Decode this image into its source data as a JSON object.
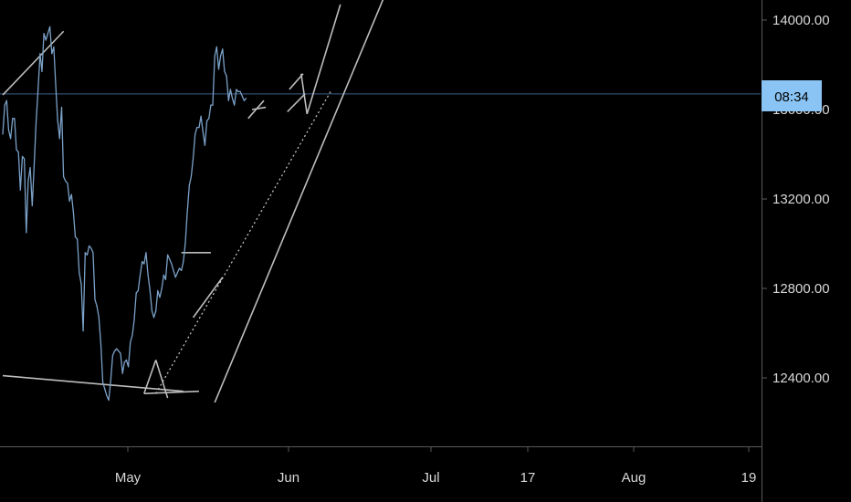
{
  "chart_data": {
    "type": "line",
    "title": "",
    "xlabel": "",
    "ylabel": "",
    "x_ticks": [
      "May",
      "Jun",
      "Jul",
      "17",
      "Aug",
      "19"
    ],
    "y_ticks": [
      "14000.00",
      "13600.00",
      "13200.00",
      "12800.00",
      "12400.00"
    ],
    "ylim": [
      12100,
      14080
    ],
    "current_price_label": "08:34",
    "current_price_level": 13670,
    "grid": false,
    "series": [
      {
        "values": [
          13490,
          13620,
          13640,
          13510,
          13470,
          13560,
          13560,
          13420,
          13410,
          13240,
          13390,
          13380,
          13050,
          13280,
          13340,
          13170,
          13350,
          13540,
          13690,
          13850,
          13770,
          13940,
          13910,
          13940,
          13970,
          13850,
          13880,
          13710,
          13550,
          13470,
          13610,
          13300,
          13280,
          13270,
          13190,
          13220,
          13140,
          13030,
          13020,
          12870,
          12820,
          12610,
          12960,
          12950,
          12990,
          12980,
          12960,
          12750,
          12720,
          12670,
          12550,
          12380,
          12350,
          12320,
          12300,
          12390,
          12500,
          12520,
          12530,
          12520,
          12510,
          12420,
          12470,
          12480,
          12450,
          12560,
          12590,
          12660,
          12780,
          12790,
          12860,
          12920,
          12910,
          12960,
          12860,
          12790,
          12700,
          12670,
          12700,
          12790,
          12760,
          12800,
          12860,
          12840,
          12950,
          12930,
          12910,
          12880,
          12850,
          12870,
          12890,
          12880,
          12920,
          13000,
          13140,
          13260,
          13300,
          13380,
          13490,
          13520,
          13520,
          13570,
          13500,
          13440,
          13550,
          13560,
          13620,
          13620,
          13840,
          13880,
          13780,
          13840,
          13870,
          13770,
          13750,
          13640,
          13690,
          13650,
          13620,
          13690,
          13680,
          13680,
          13660,
          13640,
          13650
        ]
      }
    ],
    "annotations": [
      {
        "kind": "trendline",
        "points": [
          [
            0,
            13665
          ],
          [
            31,
            13950
          ]
        ]
      },
      {
        "kind": "trendline",
        "points": [
          [
            0,
            12410
          ],
          [
            92,
            12340
          ]
        ]
      },
      {
        "kind": "trendline",
        "points": [
          [
            72,
            12330
          ],
          [
            100,
            12340
          ]
        ]
      },
      {
        "kind": "trendline",
        "points": [
          [
            72,
            12330
          ],
          [
            78,
            12480
          ]
        ]
      },
      {
        "kind": "trendline",
        "points": [
          [
            78,
            12480
          ],
          [
            84,
            12310
          ]
        ]
      },
      {
        "kind": "trendline",
        "points": [
          [
            91,
            12960
          ],
          [
            106,
            12960
          ]
        ]
      },
      {
        "kind": "trendline",
        "points": [
          [
            97,
            12670
          ],
          [
            112,
            12850
          ]
        ]
      },
      {
        "kind": "trendline",
        "points": [
          [
            125,
            13560
          ],
          [
            133,
            13640
          ]
        ]
      },
      {
        "kind": "trendline",
        "points": [
          [
            127,
            13600
          ],
          [
            134,
            13610
          ]
        ]
      },
      {
        "kind": "trendline",
        "points": [
          [
            146,
            13690
          ],
          [
            153,
            13760
          ]
        ]
      },
      {
        "kind": "trendline",
        "points": [
          [
            145,
            13590
          ],
          [
            154,
            13670
          ]
        ]
      },
      {
        "kind": "trendline",
        "points": [
          [
            152,
            13760
          ],
          [
            155,
            13580
          ]
        ]
      },
      {
        "kind": "trendline",
        "points": [
          [
            155,
            13580
          ],
          [
            172,
            14070
          ]
        ]
      },
      {
        "kind": "trendline",
        "points": [
          [
            108,
            12290
          ],
          [
            196,
            14140
          ]
        ]
      },
      {
        "kind": "dotted",
        "points": [
          [
            78,
            12330
          ],
          [
            167,
            13680
          ]
        ]
      }
    ]
  }
}
